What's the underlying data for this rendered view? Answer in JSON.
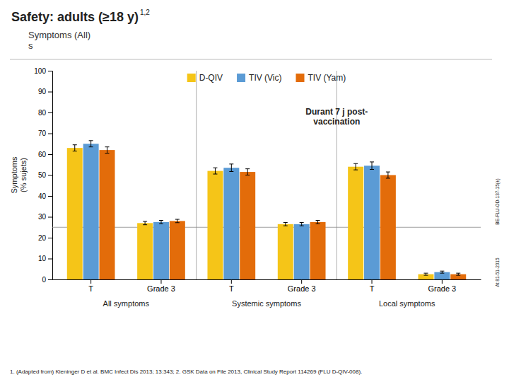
{
  "chart_data": {
    "type": "bar",
    "title": "Safety: adults (≥18 y)",
    "subtitle": "Symptoms  (All)\ns",
    "ylabel": "Symptoms\n(% sujets)",
    "annotations": [
      "1,2",
      "Durant 7 j post-\nvaccination",
      "BE-FLU-OD-137-15(±)",
      "At 81-51-2015"
    ],
    "footnote": "1. (Adapted from) Kieninger D et al. BMC Infect Dis 2013; 13:343; 2. GSK Data on File 2013, Clinical Study Report 114269 (FLU D-QIV-008).",
    "categories": [
      "T",
      "Grade 3",
      "T",
      "Grade 3",
      "T",
      "Grade 3"
    ],
    "sections": [
      "All symptoms",
      "Systemic  symptoms",
      "Local  symptoms"
    ],
    "series": [
      {
        "name": "D-QIV",
        "color": "#F5C518",
        "values": [
          63,
          27,
          52,
          26.5,
          54,
          2.5
        ],
        "errors": [
          1.5,
          0.8,
          1.5,
          0.8,
          1.5,
          0.5
        ]
      },
      {
        "name": "TIV (Vic)",
        "color": "#5B9BD5",
        "values": [
          65,
          27.5,
          53.5,
          26.5,
          54.5,
          3.5
        ],
        "errors": [
          1.5,
          0.8,
          1.8,
          0.8,
          1.8,
          0.5
        ]
      },
      {
        "name": "TIV (Yam)",
        "color": "#E36C0A",
        "values": [
          62,
          28,
          51.5,
          27.5,
          50,
          2.5
        ],
        "errors": [
          1.5,
          0.8,
          1.5,
          0.8,
          1.5,
          0.5
        ]
      }
    ],
    "hline": 25,
    "ylim": [
      0,
      100
    ],
    "yticks": [
      0,
      10,
      20,
      30,
      40,
      50,
      60,
      70,
      80,
      90,
      100
    ],
    "grid": false,
    "legend": "top"
  }
}
